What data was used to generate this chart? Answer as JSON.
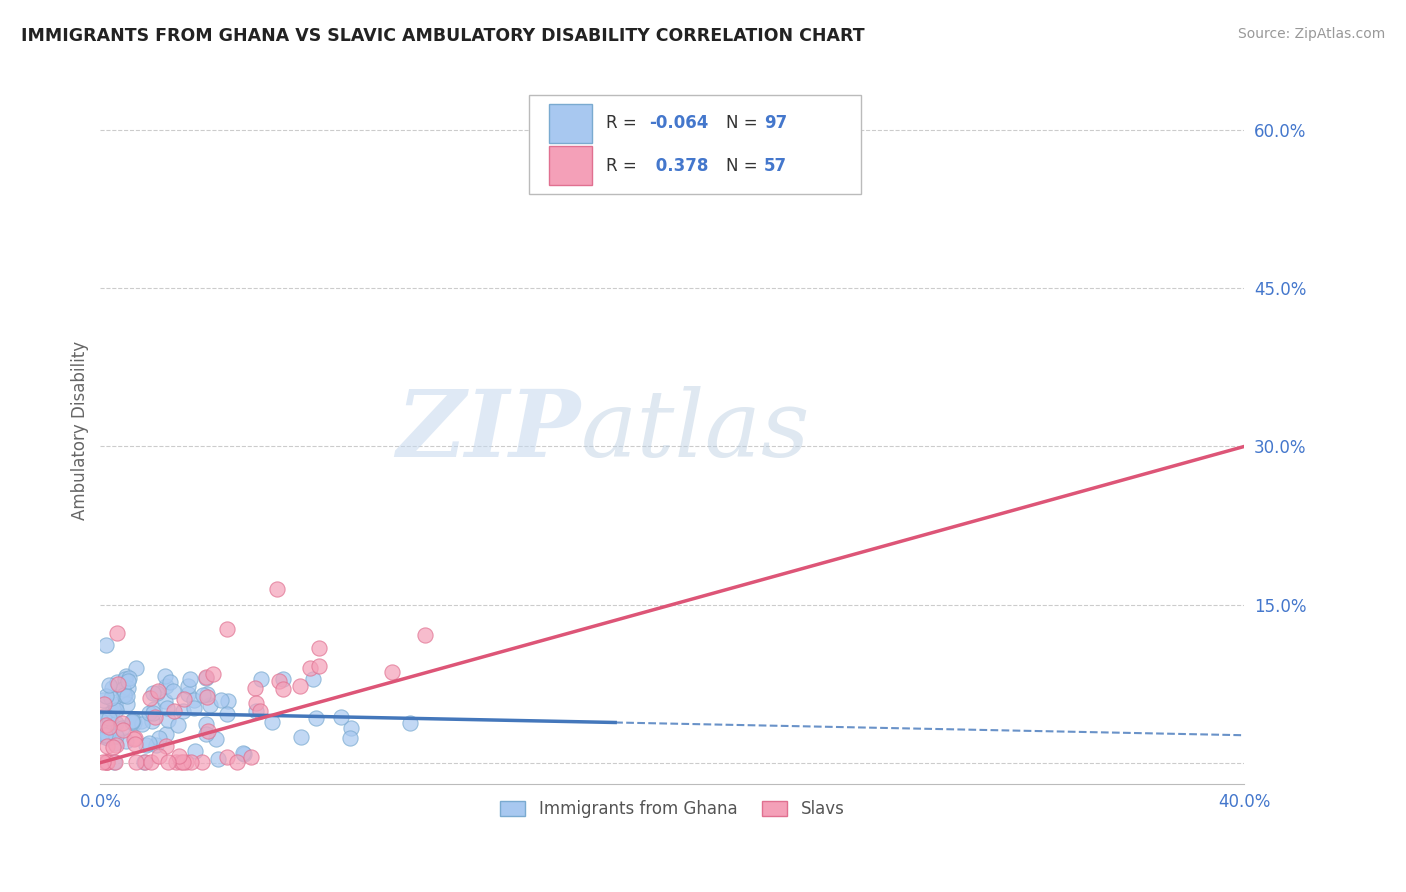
{
  "title": "IMMIGRANTS FROM GHANA VS SLAVIC AMBULATORY DISABILITY CORRELATION CHART",
  "source": "Source: ZipAtlas.com",
  "ylabel": "Ambulatory Disability",
  "color_ghana": "#a8c8f0",
  "color_slavs": "#f4a0b8",
  "color_ghana_edge": "#7aaad0",
  "color_slavs_edge": "#e07090",
  "color_ghana_line": "#4477bb",
  "color_slavs_line": "#dd5577",
  "color_text_blue": "#4477cc",
  "background_color": "#ffffff",
  "grid_color": "#cccccc",
  "xlim": [
    0.0,
    0.4
  ],
  "ylim": [
    -0.02,
    0.65
  ],
  "ytick_vals": [
    0.0,
    0.15,
    0.3,
    0.45,
    0.6
  ],
  "ytick_labels": [
    "",
    "15.0%",
    "30.0%",
    "45.0%",
    "60.0%"
  ],
  "ghana_intercept": 0.048,
  "ghana_slope": -0.055,
  "slavs_intercept": 0.0,
  "slavs_slope": 0.75,
  "ghana_line_solid_end": 0.18,
  "watermark_zip": "ZIP",
  "watermark_atlas": "atlas"
}
